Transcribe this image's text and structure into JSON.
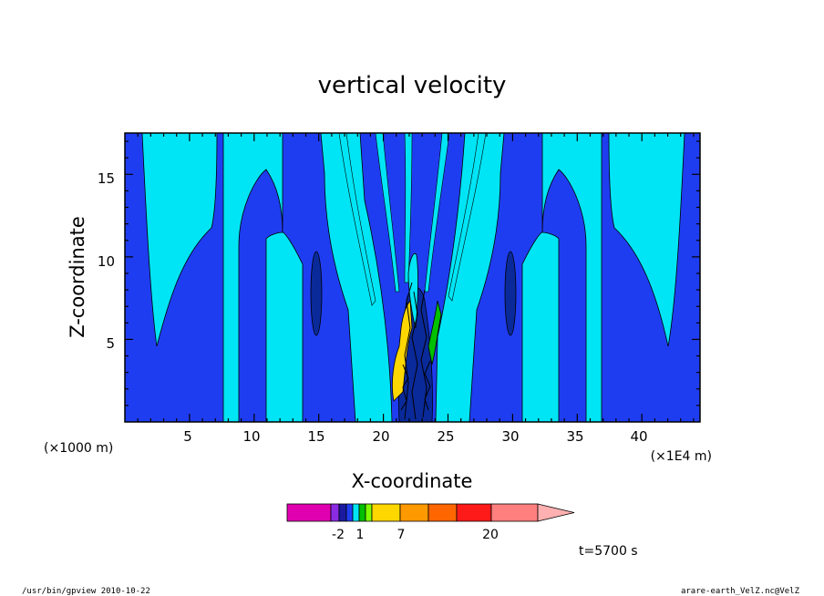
{
  "chart_data": {
    "type": "heatmap",
    "title": "vertical velocity",
    "xlabel": "X-coordinate",
    "ylabel": "Z-coordinate",
    "x_unit_left": "(×1000 m)",
    "x_unit_right": "(×1E4 m)",
    "xlim": [
      0,
      44.5
    ],
    "ylim": [
      0,
      17.5
    ],
    "x_ticks": [
      5,
      10,
      15,
      20,
      25,
      30,
      35,
      40
    ],
    "y_ticks": [
      5,
      10,
      15
    ],
    "x_tick_labels": [
      "5",
      "10",
      "15",
      "20",
      "25",
      "30",
      "35",
      "40"
    ],
    "y_tick_labels": [
      "5",
      "10",
      "15"
    ],
    "colors": {
      "dark_navy": "#0a2a9a",
      "blue": "#1f3df0",
      "cyan": "#00e5f5",
      "green": "#00c000",
      "yellow": "#ffd700",
      "black": "#000000"
    },
    "colorbar": {
      "tick_labels": [
        "-2",
        "1",
        "7",
        "20"
      ],
      "segments": [
        "#e000b0",
        "#8a2be2",
        "#1a1aa0",
        "#1f3df0",
        "#00e5f5",
        "#00c000",
        "#7fff00",
        "#ffd700",
        "#ff9900",
        "#ff6600",
        "#ff1a1a",
        "#ff7f7f"
      ],
      "extension_color": "#ffb0b0"
    },
    "time_label": "t=5700 s"
  },
  "footer": {
    "left": "/usr/bin/gpview   2010-10-22",
    "right": "arare-earth_VelZ.nc@VelZ"
  }
}
